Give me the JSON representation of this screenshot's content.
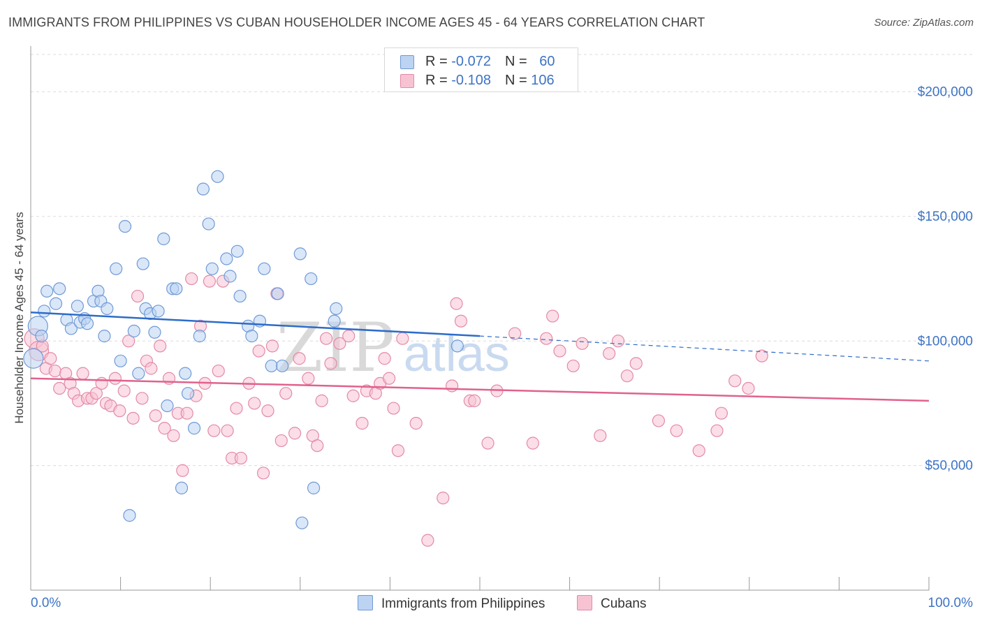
{
  "title": "IMMIGRANTS FROM PHILIPPINES VS CUBAN HOUSEHOLDER INCOME AGES 45 - 64 YEARS CORRELATION CHART",
  "source": "Source: ZipAtlas.com",
  "legend": {
    "row1": {
      "r_label": "R = ",
      "r_value": "-0.072",
      "n_label": "N = ",
      "n_value": "60"
    },
    "row2": {
      "r_label": "R = ",
      "r_value": "-0.108",
      "n_label": "N = ",
      "n_value": "106"
    }
  },
  "colors": {
    "blue_fill": "#bcd3f2",
    "blue_stroke": "#6f9ad6",
    "blue_line": "#2d6cc9",
    "pink_fill": "#f7c3d3",
    "pink_stroke": "#e38aa7",
    "pink_line": "#e0628c",
    "axis_label": "#3d73c4"
  },
  "chart_data": {
    "type": "scatter",
    "title": "IMMIGRANTS FROM PHILIPPINES VS CUBAN HOUSEHOLDER INCOME AGES 45 - 64 YEARS CORRELATION CHART",
    "xlabel": "",
    "ylabel": "Householder Income Ages 45 - 64 years",
    "xlim": [
      0,
      100
    ],
    "ylim": [
      0,
      215000
    ],
    "x_tick_labels": [
      "0.0%",
      "100.0%"
    ],
    "y_ticks": [
      50000,
      100000,
      150000,
      200000
    ],
    "y_tick_labels": [
      "$50,000",
      "$100,000",
      "$150,000",
      "$200,000"
    ],
    "grid": true,
    "legend_position": "top-center",
    "series": [
      {
        "name": "Immigrants from Philippines",
        "R": -0.072,
        "N": 60,
        "trend": {
          "x0": 0,
          "y0": 111500,
          "x1": 50,
          "y1": 102000,
          "dashed_to_x": 100,
          "dashed_to_y": 92000
        },
        "points": [
          [
            0.3,
            93000
          ],
          [
            0.8,
            106000
          ],
          [
            1.2,
            102000
          ],
          [
            1.5,
            112000
          ],
          [
            1.8,
            120000
          ],
          [
            2.8,
            115000
          ],
          [
            3.2,
            121000
          ],
          [
            4.0,
            108500
          ],
          [
            4.5,
            105000
          ],
          [
            5.2,
            114000
          ],
          [
            5.5,
            107500
          ],
          [
            6.0,
            109000
          ],
          [
            6.3,
            107000
          ],
          [
            7.0,
            116000
          ],
          [
            7.5,
            120000
          ],
          [
            7.8,
            116000
          ],
          [
            8.2,
            102000
          ],
          [
            8.5,
            113000
          ],
          [
            9.5,
            129000
          ],
          [
            10.0,
            92000
          ],
          [
            10.5,
            146000
          ],
          [
            11.0,
            30000
          ],
          [
            11.5,
            104000
          ],
          [
            12.0,
            87000
          ],
          [
            12.5,
            131000
          ],
          [
            12.8,
            113000
          ],
          [
            13.3,
            111000
          ],
          [
            13.8,
            103500
          ],
          [
            14.2,
            112000
          ],
          [
            14.8,
            141000
          ],
          [
            15.2,
            74000
          ],
          [
            15.8,
            121000
          ],
          [
            16.2,
            121000
          ],
          [
            16.8,
            41000
          ],
          [
            17.2,
            87000
          ],
          [
            17.5,
            79000
          ],
          [
            18.2,
            65000
          ],
          [
            18.8,
            102000
          ],
          [
            19.2,
            161000
          ],
          [
            19.8,
            147000
          ],
          [
            20.2,
            129000
          ],
          [
            20.8,
            166000
          ],
          [
            21.8,
            133000
          ],
          [
            22.2,
            126000
          ],
          [
            23.0,
            136000
          ],
          [
            23.3,
            118000
          ],
          [
            24.2,
            106000
          ],
          [
            24.6,
            102000
          ],
          [
            25.5,
            108000
          ],
          [
            26.0,
            129000
          ],
          [
            26.8,
            90000
          ],
          [
            27.5,
            119000
          ],
          [
            28.0,
            90000
          ],
          [
            30.2,
            27000
          ],
          [
            30.0,
            135000
          ],
          [
            31.2,
            125000
          ],
          [
            31.5,
            41000
          ],
          [
            33.8,
            108000
          ],
          [
            34.0,
            113000
          ],
          [
            47.5,
            98000
          ]
        ]
      },
      {
        "name": "Cubans",
        "R": -0.108,
        "N": 106,
        "trend": {
          "x0": 0,
          "y0": 85000,
          "x1": 100,
          "y1": 76000
        },
        "points": [
          [
            0.4,
            101000
          ],
          [
            0.9,
            96000
          ],
          [
            1.3,
            98000
          ],
          [
            1.7,
            89000
          ],
          [
            2.2,
            93000
          ],
          [
            2.7,
            88000
          ],
          [
            3.2,
            81000
          ],
          [
            3.9,
            87000
          ],
          [
            4.4,
            83000
          ],
          [
            4.8,
            79000
          ],
          [
            5.3,
            76000
          ],
          [
            5.8,
            87000
          ],
          [
            6.3,
            77000
          ],
          [
            6.8,
            77000
          ],
          [
            7.3,
            79000
          ],
          [
            7.9,
            83000
          ],
          [
            8.4,
            75000
          ],
          [
            8.9,
            74000
          ],
          [
            9.4,
            85000
          ],
          [
            9.9,
            72000
          ],
          [
            10.4,
            80000
          ],
          [
            10.9,
            100000
          ],
          [
            11.4,
            69000
          ],
          [
            11.9,
            118000
          ],
          [
            12.4,
            77000
          ],
          [
            12.9,
            92000
          ],
          [
            13.4,
            89000
          ],
          [
            13.9,
            70000
          ],
          [
            14.4,
            98000
          ],
          [
            14.9,
            65000
          ],
          [
            15.4,
            85000
          ],
          [
            15.9,
            62000
          ],
          [
            16.4,
            71000
          ],
          [
            16.9,
            48000
          ],
          [
            17.4,
            71000
          ],
          [
            17.9,
            125000
          ],
          [
            18.4,
            78000
          ],
          [
            18.9,
            106000
          ],
          [
            19.4,
            83000
          ],
          [
            19.9,
            124000
          ],
          [
            20.4,
            64000
          ],
          [
            20.9,
            88000
          ],
          [
            21.4,
            124000
          ],
          [
            21.9,
            64000
          ],
          [
            22.4,
            53000
          ],
          [
            22.9,
            73000
          ],
          [
            23.4,
            53000
          ],
          [
            24.3,
            83000
          ],
          [
            24.9,
            75000
          ],
          [
            25.4,
            96000
          ],
          [
            25.9,
            47000
          ],
          [
            26.4,
            72000
          ],
          [
            26.9,
            98000
          ],
          [
            27.4,
            119000
          ],
          [
            27.9,
            60000
          ],
          [
            28.4,
            79000
          ],
          [
            29.4,
            63000
          ],
          [
            29.9,
            93000
          ],
          [
            30.9,
            85000
          ],
          [
            31.4,
            62000
          ],
          [
            31.9,
            58000
          ],
          [
            32.4,
            76000
          ],
          [
            32.9,
            101000
          ],
          [
            33.4,
            91000
          ],
          [
            34.4,
            99000
          ],
          [
            35.4,
            102000
          ],
          [
            35.9,
            78000
          ],
          [
            36.9,
            67000
          ],
          [
            37.4,
            80000
          ],
          [
            38.4,
            79000
          ],
          [
            38.9,
            83000
          ],
          [
            39.4,
            93000
          ],
          [
            39.9,
            85000
          ],
          [
            40.4,
            73000
          ],
          [
            40.9,
            56000
          ],
          [
            41.4,
            101000
          ],
          [
            42.9,
            67000
          ],
          [
            44.2,
            20000
          ],
          [
            45.9,
            37000
          ],
          [
            46.9,
            82000
          ],
          [
            47.4,
            115000
          ],
          [
            47.9,
            108000
          ],
          [
            48.9,
            76000
          ],
          [
            49.4,
            76000
          ],
          [
            50.9,
            59000
          ],
          [
            51.9,
            80000
          ],
          [
            53.9,
            103000
          ],
          [
            55.9,
            59000
          ],
          [
            57.4,
            101000
          ],
          [
            58.1,
            110000
          ],
          [
            58.9,
            96000
          ],
          [
            60.4,
            90000
          ],
          [
            61.4,
            99000
          ],
          [
            63.4,
            62000
          ],
          [
            64.4,
            95000
          ],
          [
            65.4,
            100000
          ],
          [
            66.4,
            86000
          ],
          [
            67.4,
            91000
          ],
          [
            69.9,
            68000
          ],
          [
            71.9,
            64000
          ],
          [
            74.4,
            56000
          ],
          [
            76.4,
            64000
          ],
          [
            76.9,
            71000
          ],
          [
            78.4,
            84000
          ],
          [
            79.9,
            81000
          ],
          [
            81.4,
            94000
          ]
        ]
      }
    ]
  },
  "bottom_legend": [
    "Immigrants from Philippines",
    "Cubans"
  ],
  "watermark": {
    "part1": "ZIP",
    "part2": "atlas"
  }
}
